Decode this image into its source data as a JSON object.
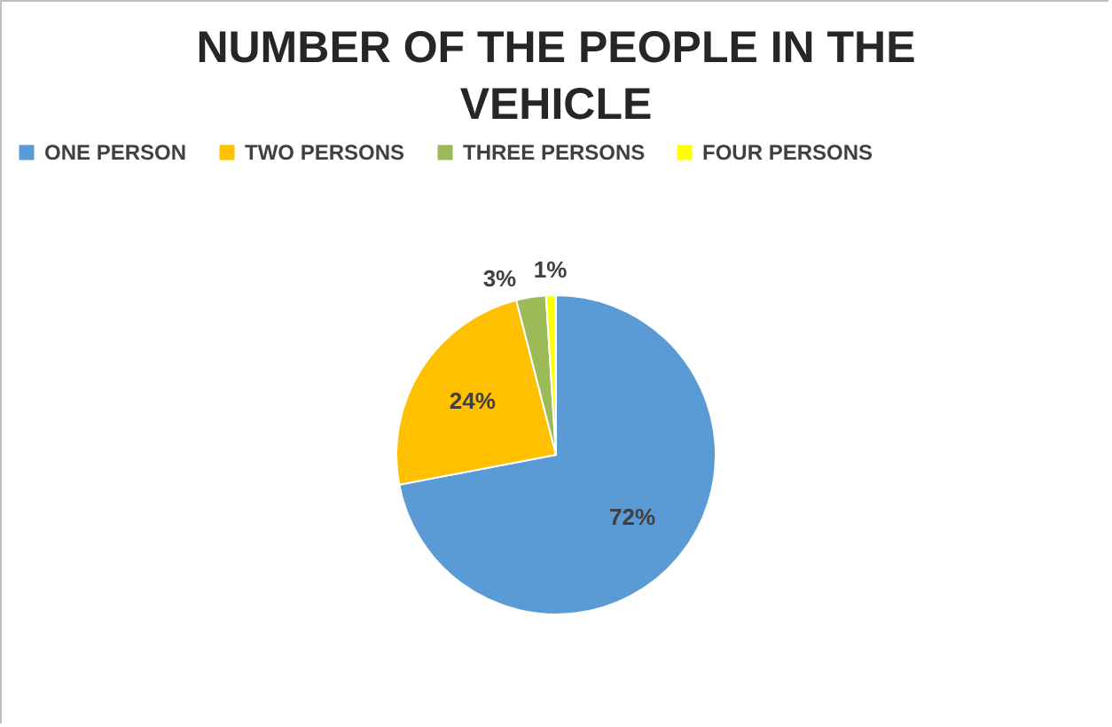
{
  "chart_data": {
    "type": "pie",
    "title": "NUMBER OF THE PEOPLE IN THE VEHICLE",
    "categories": [
      "ONE PERSON",
      "TWO PERSONS",
      "THREE PERSONS",
      "FOUR PERSONS"
    ],
    "values": [
      72,
      24,
      3,
      1
    ],
    "colors": [
      "#5b9bd5",
      "#ffc000",
      "#9bbb59",
      "#ffff00"
    ],
    "value_labels": [
      "72%",
      "24%",
      "3%",
      "1%"
    ],
    "legend": "top"
  }
}
